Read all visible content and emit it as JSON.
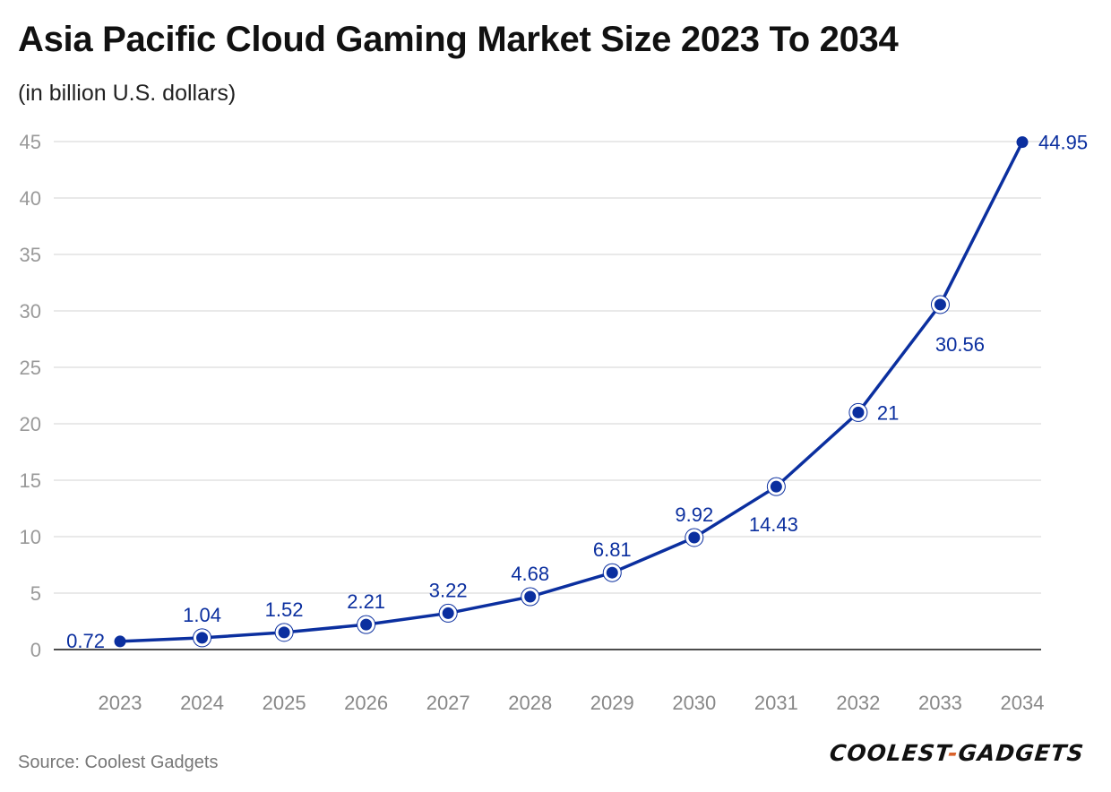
{
  "title": "Asia Pacific Cloud Gaming Market Size 2023 To 2034",
  "subtitle": "(in billion U.S. dollars)",
  "source": "Source: Coolest Gadgets",
  "logo": {
    "left": "COOLEST",
    "sep": "-",
    "right": "GADGETS"
  },
  "colors": {
    "line": "#0b2f9f",
    "grid": "#e2e2e2",
    "axis": "#111111",
    "tick": "#999999",
    "label": "#0b2f9f"
  },
  "chart_data": {
    "type": "line",
    "title": "Asia Pacific Cloud Gaming Market Size 2023 To 2034",
    "subtitle": "(in billion U.S. dollars)",
    "xlabel": "",
    "ylabel": "",
    "ylim": [
      0,
      45
    ],
    "yticks": [
      0,
      5,
      10,
      15,
      20,
      25,
      30,
      35,
      40,
      45
    ],
    "grid": true,
    "categories": [
      "2023",
      "2024",
      "2025",
      "2026",
      "2027",
      "2028",
      "2029",
      "2030",
      "2031",
      "2032",
      "2033",
      "2034"
    ],
    "series": [
      {
        "name": "Market Size",
        "values": [
          0.72,
          1.04,
          1.52,
          2.21,
          3.22,
          4.68,
          6.81,
          9.92,
          14.43,
          21,
          30.56,
          44.95
        ],
        "labels": [
          "0.72",
          "1.04",
          "1.52",
          "2.21",
          "3.22",
          "4.68",
          "6.81",
          "9.92",
          "14.43",
          "21",
          "30.56",
          "44.95"
        ]
      }
    ]
  }
}
